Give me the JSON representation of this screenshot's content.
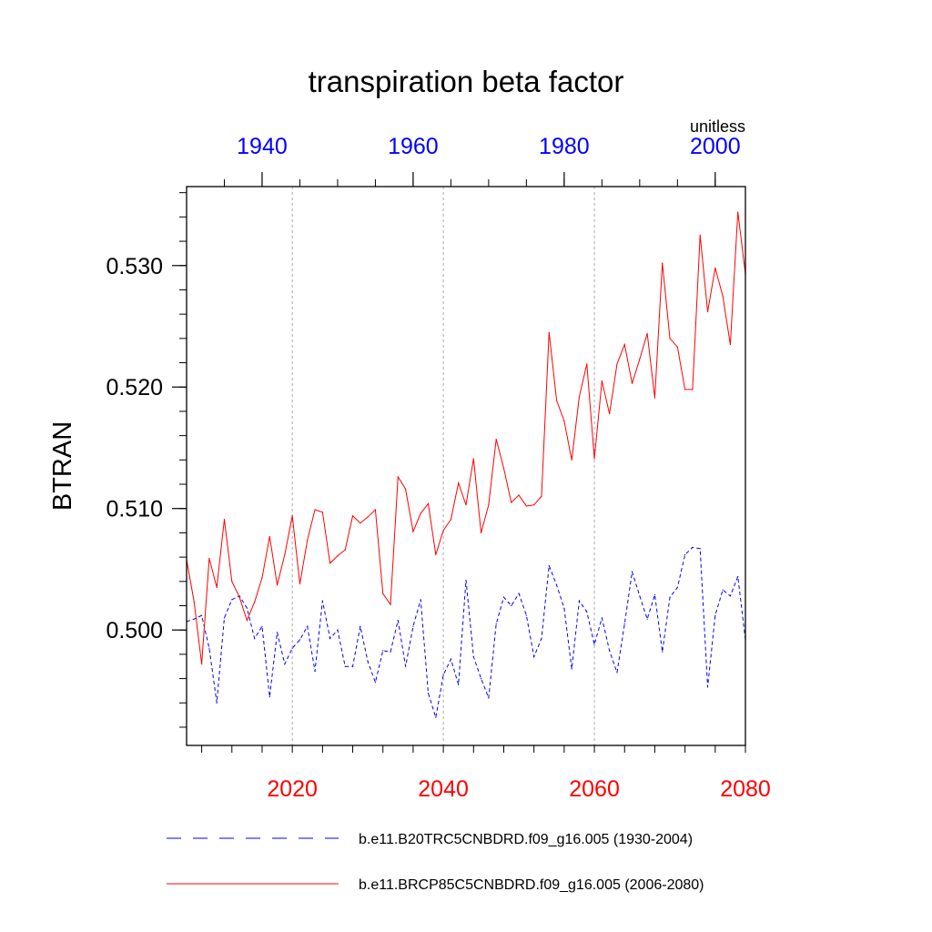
{
  "chart_data": {
    "type": "line",
    "title": "transpiration beta factor",
    "units_label": "unitless",
    "ylabel": "BTRAN",
    "xlabel": "",
    "ylim": [
      0.4905,
      0.5365
    ],
    "y_ticks": [
      {
        "value": 0.5,
        "label": "0.500"
      },
      {
        "value": 0.51,
        "label": "0.510"
      },
      {
        "value": 0.52,
        "label": "0.520"
      },
      {
        "value": 0.53,
        "label": "0.530"
      }
    ],
    "top_axis": {
      "range": [
        1930,
        2004
      ],
      "tick_labels": [
        "1940",
        "1960",
        "1980",
        "2000"
      ],
      "ticks": [
        1940,
        1960,
        1980,
        2000
      ],
      "color": "#0000ff"
    },
    "bottom_axis": {
      "range": [
        2006,
        2080
      ],
      "tick_labels": [
        "2020",
        "2040",
        "2060",
        "2080"
      ],
      "ticks": [
        2020,
        2040,
        2060,
        2080
      ],
      "color": "#ff0000"
    },
    "grid": "vertical dotted lines at 2020/2040/2060",
    "legend_position": "bottom",
    "series": [
      {
        "name": "b.e11.B20TRC5CNBDRD.f09_g16.005 (1930-2004)",
        "axis": "top",
        "color": "#0000ff",
        "style": "dashed",
        "start_year": 1930,
        "values": [
          0.5007,
          0.5009,
          0.5012,
          0.4985,
          0.494,
          0.501,
          0.5025,
          0.5028,
          0.5018,
          0.4993,
          0.5003,
          0.4945,
          0.4998,
          0.4972,
          0.4985,
          0.4992,
          0.5003,
          0.4966,
          0.5024,
          0.4993,
          0.5,
          0.497,
          0.497,
          0.5003,
          0.4974,
          0.4957,
          0.4983,
          0.4982,
          0.5008,
          0.497,
          0.5003,
          0.5025,
          0.4948,
          0.4928,
          0.4963,
          0.4976,
          0.4955,
          0.5041,
          0.4978,
          0.496,
          0.4944,
          0.5005,
          0.5027,
          0.502,
          0.503,
          0.5012,
          0.4978,
          0.4993,
          0.5053,
          0.5037,
          0.5018,
          0.4968,
          0.5024,
          0.5015,
          0.4988,
          0.501,
          0.4983,
          0.4965,
          0.5005,
          0.5048,
          0.5028,
          0.5009,
          0.5029,
          0.4982,
          0.5027,
          0.5035,
          0.5062,
          0.5068,
          0.5067,
          0.4953,
          0.5012,
          0.5033,
          0.5028,
          0.5044,
          0.4992
        ]
      },
      {
        "name": "b.e11.BRCP85C5CNBDRD.f09_g16.005 (2006-2080)",
        "axis": "bottom",
        "color": "#ff0000",
        "style": "solid",
        "start_year": 2006,
        "values": [
          0.5058,
          0.5023,
          0.4972,
          0.5059,
          0.5035,
          0.5091,
          0.504,
          0.5027,
          0.5008,
          0.5023,
          0.5043,
          0.5077,
          0.5037,
          0.5062,
          0.5094,
          0.5038,
          0.5074,
          0.5099,
          0.5097,
          0.5055,
          0.5061,
          0.5066,
          0.5094,
          0.5088,
          0.5093,
          0.5099,
          0.503,
          0.5021,
          0.5126,
          0.5116,
          0.5081,
          0.5096,
          0.5104,
          0.5062,
          0.5082,
          0.5091,
          0.5121,
          0.5103,
          0.5141,
          0.508,
          0.5103,
          0.5157,
          0.5133,
          0.5105,
          0.5111,
          0.5102,
          0.5103,
          0.511,
          0.5245,
          0.5189,
          0.5172,
          0.514,
          0.5192,
          0.5219,
          0.5141,
          0.5205,
          0.5178,
          0.5219,
          0.5235,
          0.5203,
          0.5223,
          0.5244,
          0.5191,
          0.5302,
          0.524,
          0.5233,
          0.5198,
          0.5198,
          0.5325,
          0.5262,
          0.5298,
          0.5275,
          0.5235,
          0.5344,
          0.5293
        ]
      }
    ]
  }
}
